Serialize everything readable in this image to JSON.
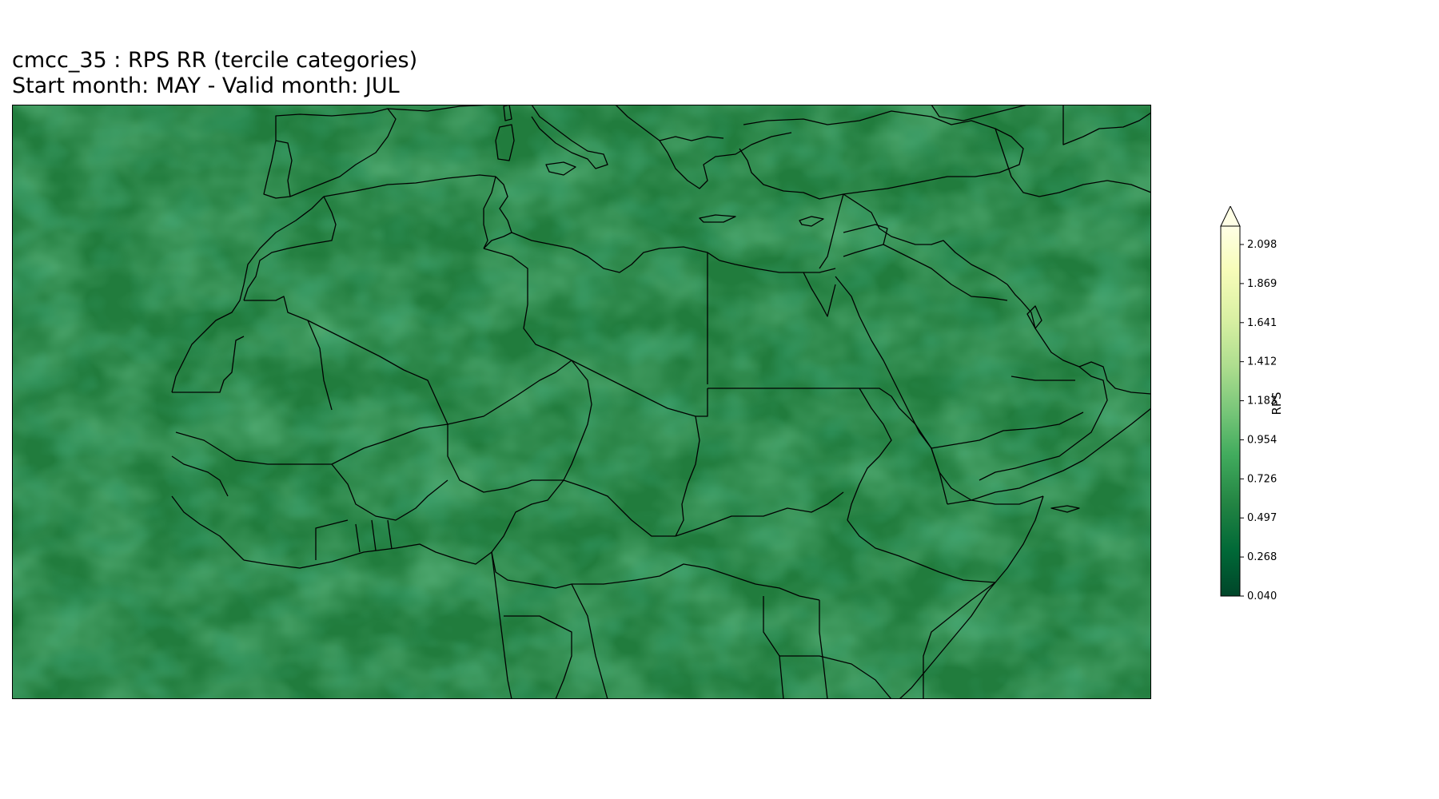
{
  "title": {
    "line1": "cmcc_35 : RPS RR (tercile categories)",
    "line2": "Start month: MAY - Valid month: JUL"
  },
  "colorbar": {
    "label": "RPS",
    "ticks": [
      "2.098",
      "1.869",
      "1.641",
      "1.412",
      "1.183",
      "0.954",
      "0.726",
      "0.497",
      "0.268",
      "0.040"
    ],
    "extend": "max",
    "palette": [
      "#004529",
      "#006837",
      "#238443",
      "#41ab5d",
      "#78c679",
      "#addd8e",
      "#d9f0a3",
      "#f7fcb9",
      "#ffffe5"
    ]
  },
  "map": {
    "fill_base": "#217c3d",
    "fill_light": "#2e8b47",
    "fill_dark": "#0f6330",
    "border_color": "#000000"
  }
}
